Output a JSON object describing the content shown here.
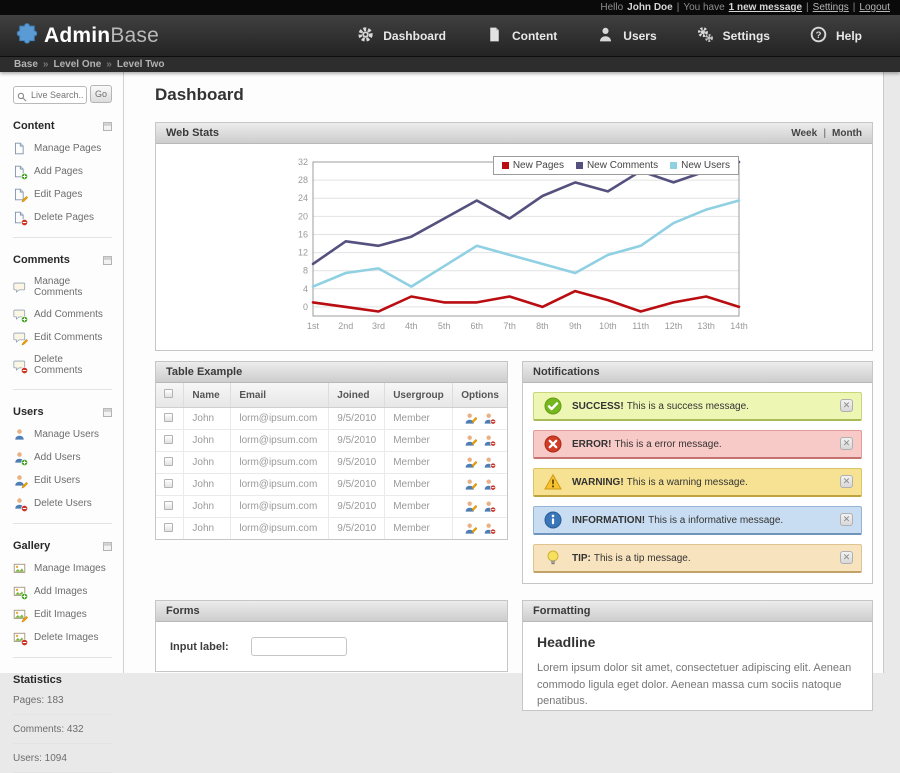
{
  "topbar": {
    "hello": "Hello",
    "user": "John Doe",
    "have": "You have",
    "message_link": "1 new message",
    "sep": "|",
    "settings": "Settings",
    "logout": "Logout"
  },
  "header": {
    "logo_bold": "Admin",
    "logo_light": "Base",
    "nav": [
      {
        "label": "Dashboard",
        "icon": "gear-icon"
      },
      {
        "label": "Content",
        "icon": "document-icon"
      },
      {
        "label": "Users",
        "icon": "person-icon"
      },
      {
        "label": "Settings",
        "icon": "gears-icon"
      },
      {
        "label": "Help",
        "icon": "help-icon"
      }
    ]
  },
  "breadcrumb": {
    "items": [
      "Base",
      "Level One",
      "Level Two"
    ],
    "separator": "»"
  },
  "sidebar": {
    "search": {
      "placeholder": "Live Search...",
      "button": "Go"
    },
    "sections": [
      {
        "title": "Content",
        "icon": "page",
        "items": [
          {
            "label": "Manage Pages",
            "badge": ""
          },
          {
            "label": "Add Pages",
            "badge": "add"
          },
          {
            "label": "Edit Pages",
            "badge": "edit"
          },
          {
            "label": "Delete Pages",
            "badge": "delete"
          }
        ]
      },
      {
        "title": "Comments",
        "icon": "comment",
        "items": [
          {
            "label": "Manage Comments",
            "badge": ""
          },
          {
            "label": "Add Comments",
            "badge": "add"
          },
          {
            "label": "Edit Comments",
            "badge": "edit"
          },
          {
            "label": "Delete Comments",
            "badge": "delete"
          }
        ]
      },
      {
        "title": "Users",
        "icon": "user",
        "items": [
          {
            "label": "Manage Users",
            "badge": ""
          },
          {
            "label": "Add Users",
            "badge": "add"
          },
          {
            "label": "Edit Users",
            "badge": "edit"
          },
          {
            "label": "Delete Users",
            "badge": "delete"
          }
        ]
      },
      {
        "title": "Gallery",
        "icon": "image",
        "items": [
          {
            "label": "Manage Images",
            "badge": ""
          },
          {
            "label": "Add Images",
            "badge": "add"
          },
          {
            "label": "Edit Images",
            "badge": "edit"
          },
          {
            "label": "Delete Images",
            "badge": "delete"
          }
        ]
      }
    ],
    "statistics": {
      "title": "Statistics",
      "items": [
        "Pages: 183",
        "Comments: 432",
        "Users: 1094"
      ]
    }
  },
  "page": {
    "title": "Dashboard"
  },
  "webstats": {
    "title": "Web Stats",
    "range_links": [
      "Week",
      "Month"
    ],
    "range_separator": "|"
  },
  "chart_data": {
    "type": "line",
    "title": "Web Stats",
    "x_labels": [
      "1st",
      "2nd",
      "3rd",
      "4th",
      "5th",
      "6th",
      "7th",
      "8th",
      "9th",
      "10th",
      "11th",
      "12th",
      "13th",
      "14th"
    ],
    "yticks": [
      0,
      4,
      8,
      12,
      16,
      20,
      24,
      28,
      32
    ],
    "ylim": [
      -2,
      32
    ],
    "grid": true,
    "legend_position": "top-right",
    "series": [
      {
        "name": "New Pages",
        "color": "#b90d12",
        "values": [
          1,
          0,
          -1,
          2.3,
          1,
          1,
          2.3,
          0,
          3.5,
          1.5,
          -1,
          1,
          2.3,
          0
        ]
      },
      {
        "name": "New Comments",
        "color": "#55517e",
        "values": [
          9.5,
          14.5,
          13.5,
          15.5,
          19.5,
          23.5,
          19.5,
          24.5,
          27.5,
          25.5,
          30,
          27.5,
          30,
          32
        ]
      },
      {
        "name": "New Users",
        "color": "#8fd0e2",
        "values": [
          4.5,
          7.5,
          8.5,
          4.5,
          9,
          13.5,
          11.5,
          9.5,
          7.5,
          11.5,
          13.5,
          18.5,
          21.5,
          23.5
        ]
      }
    ]
  },
  "table_panel": {
    "title": "Table Example",
    "columns": [
      "Name",
      "Email",
      "Joined",
      "Usergroup",
      "Options"
    ],
    "rows": [
      {
        "name": "John",
        "email": "lorm@ipsum.com",
        "joined": "9/5/2010",
        "usergroup": "Member"
      },
      {
        "name": "John",
        "email": "lorm@ipsum.com",
        "joined": "9/5/2010",
        "usergroup": "Member"
      },
      {
        "name": "John",
        "email": "lorm@ipsum.com",
        "joined": "9/5/2010",
        "usergroup": "Member"
      },
      {
        "name": "John",
        "email": "lorm@ipsum.com",
        "joined": "9/5/2010",
        "usergroup": "Member"
      },
      {
        "name": "John",
        "email": "lorm@ipsum.com",
        "joined": "9/5/2010",
        "usergroup": "Member"
      },
      {
        "name": "John",
        "email": "lorm@ipsum.com",
        "joined": "9/5/2010",
        "usergroup": "Member"
      }
    ]
  },
  "notifications": {
    "title": "Notifications",
    "items": [
      {
        "type": "success",
        "label": "SUCCESS!",
        "text": "This is a success message."
      },
      {
        "type": "error",
        "label": "ERROR!",
        "text": "This is a error message."
      },
      {
        "type": "warning",
        "label": "WARNING!",
        "text": "This is a warning message."
      },
      {
        "type": "info",
        "label": "INFORMATION!",
        "text": "This is a informative message."
      },
      {
        "type": "tip",
        "label": "TIP:",
        "text": "This is a tip message."
      }
    ]
  },
  "forms": {
    "title": "Forms",
    "input_label": "Input label:"
  },
  "formatting": {
    "title": "Formatting",
    "headline": "Headline",
    "paragraph": "Lorem ipsum dolor sit amet, consectetuer adipiscing elit. Aenean commodo ligula eget dolor. Aenean massa cum sociis natoque penatibus."
  },
  "colors": {
    "accent_blue": "#5b9bd5",
    "series_red": "#b90d12",
    "series_slate": "#55517e",
    "series_lightblue": "#8fd0e2",
    "success_bg": "#eef6b4",
    "error_bg": "#f7c9c7",
    "warning_bg": "#f7e294",
    "info_bg": "#c8ddf2",
    "tip_bg": "#f8e3bf"
  }
}
